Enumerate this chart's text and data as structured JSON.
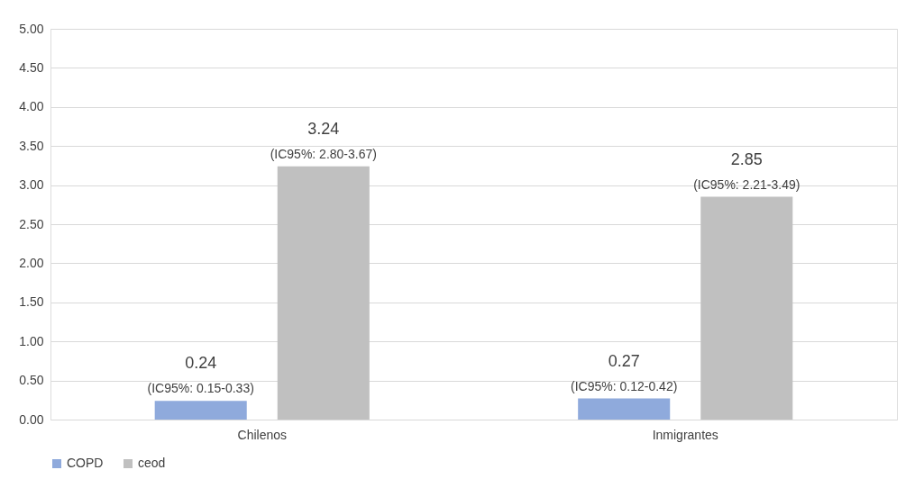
{
  "chart_data": {
    "type": "bar",
    "categories": [
      "Chilenos",
      "Inmigrantes"
    ],
    "series": [
      {
        "name": "COPD",
        "color": "#8faadc",
        "values": [
          0.24,
          0.27
        ],
        "value_labels": [
          "0.24\n(IC95%: 0.15-0.33)",
          "0.27\n(IC95%: 0.12-0.42)"
        ]
      },
      {
        "name": "ceod",
        "color": "#c0c0c0",
        "values": [
          3.24,
          2.85
        ],
        "value_labels": [
          "3.24\n(IC95%: 2.80-3.67)",
          "2.85\n(IC95%: 2.21-3.49)"
        ]
      }
    ],
    "ylim": [
      0,
      5
    ],
    "yticks": [
      {
        "value": 0,
        "label": "0.00"
      },
      {
        "value": 0.5,
        "label": "0.50"
      },
      {
        "value": 1,
        "label": "1.00"
      },
      {
        "value": 1.5,
        "label": "1.50"
      },
      {
        "value": 2,
        "label": "2.00"
      },
      {
        "value": 2.5,
        "label": "2.50"
      },
      {
        "value": 3,
        "label": "3.00"
      },
      {
        "value": 3.5,
        "label": "3.50"
      },
      {
        "value": 4,
        "label": "4.00"
      },
      {
        "value": 4.5,
        "label": "4.50"
      },
      {
        "value": 5,
        "label": "5.00"
      }
    ],
    "grid": "y",
    "legend": "bottom"
  }
}
